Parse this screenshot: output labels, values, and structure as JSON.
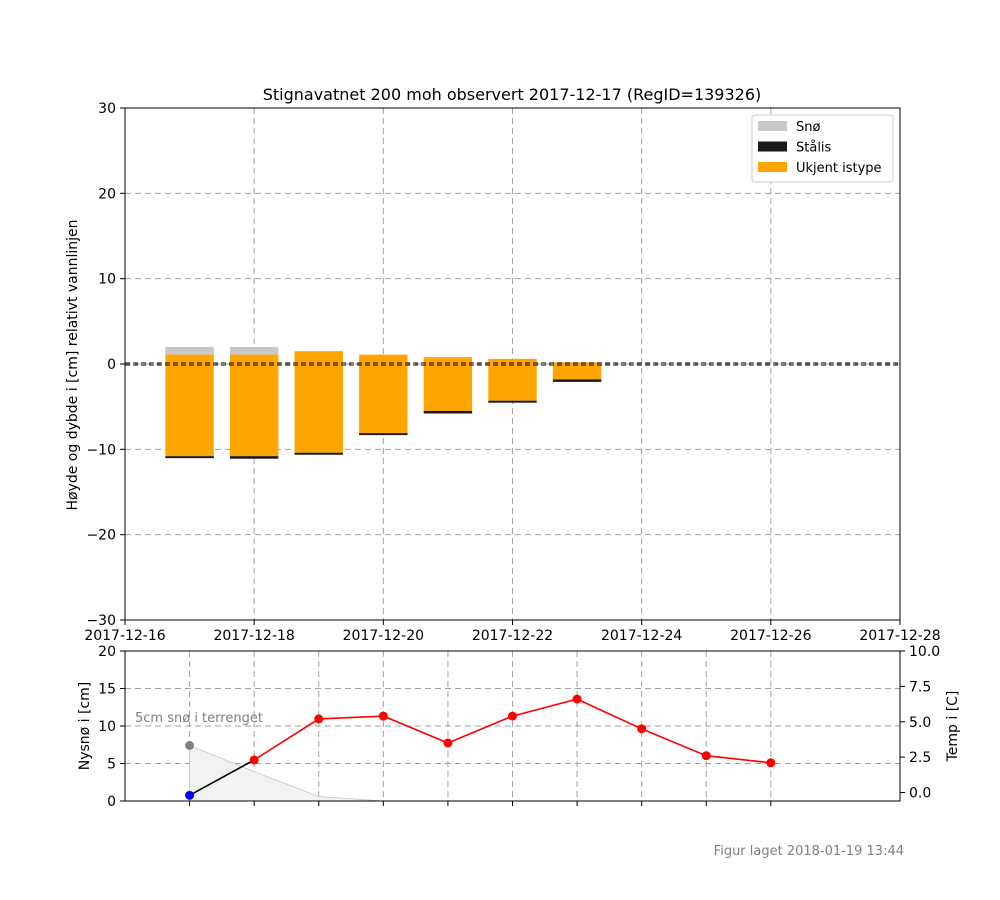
{
  "chart_data": [
    {
      "type": "bar",
      "title": "Stignavatnet 200 moh observert 2017-12-17 (RegID=139326)",
      "ylabel": "Høyde og dybde i [cm] relativt vannlinjen",
      "xlim": [
        "2017-12-16",
        "2017-12-28"
      ],
      "ylim": [
        -30,
        30
      ],
      "x_ticks": [
        "2017-12-16",
        "2017-12-18",
        "2017-12-20",
        "2017-12-22",
        "2017-12-24",
        "2017-12-26",
        "2017-12-28"
      ],
      "y_ticks": [
        30,
        20,
        10,
        0,
        -10,
        -20,
        -30
      ],
      "y_tick_labels": [
        "30",
        "20",
        "10",
        "0",
        "−10",
        "−20",
        "−30"
      ],
      "grid": true,
      "legend_position": "top-right",
      "legend": [
        {
          "label": "Snø",
          "color": "#c8c8c8"
        },
        {
          "label": "Stålis",
          "color": "#1a1a1a"
        },
        {
          "label": "Ukjent istype",
          "color": "#ffa500"
        }
      ],
      "bars": [
        {
          "date": "2017-12-17",
          "sno_top": 2.0,
          "sno_bottom": 1.1,
          "ukjent_top": 1.1,
          "ukjent_bottom": -10.8,
          "stalis_bottom": -10.8
        },
        {
          "date": "2017-12-18",
          "sno_top": 2.0,
          "sno_bottom": 1.1,
          "ukjent_top": 1.1,
          "ukjent_bottom": -10.8,
          "stalis_bottom": -11.1
        },
        {
          "date": "2017-12-19",
          "ukjent_top": 1.5,
          "ukjent_bottom": -10.4,
          "stalis_bottom": -10.6
        },
        {
          "date": "2017-12-20",
          "ukjent_top": 1.1,
          "ukjent_bottom": -8.1,
          "stalis_bottom": -8.3
        },
        {
          "date": "2017-12-21",
          "ukjent_top": 0.8,
          "ukjent_bottom": -5.5,
          "stalis_bottom": -5.8
        },
        {
          "date": "2017-12-22",
          "ukjent_top": 0.6,
          "ukjent_bottom": -4.3,
          "stalis_bottom": -4.5
        },
        {
          "date": "2017-12-23",
          "ukjent_top": 0.2,
          "ukjent_bottom": -1.8,
          "stalis_bottom": -2.1
        }
      ]
    },
    {
      "type": "line",
      "ylabel_left": "Nysnø i [cm]",
      "ylabel_right": "Temp i [C]",
      "ylim_left": [
        0,
        20
      ],
      "ylim_right": [
        -0.6,
        10.0
      ],
      "y_ticks_left": [
        "0",
        "5",
        "10",
        "15",
        "20"
      ],
      "y_ticks_right": [
        "0.0",
        "2.5",
        "5.0",
        "7.5",
        "10.0"
      ],
      "y_ticks_right_values": [
        0.0,
        2.5,
        5.0,
        7.5,
        10.0
      ],
      "annotation": "5cm snø i terrenget",
      "snow_area": [
        {
          "date": "2017-12-17",
          "value": 7.4
        },
        {
          "date": "2017-12-18",
          "value": 3.9
        },
        {
          "date": "2017-12-19",
          "value": 0.6
        },
        {
          "date": "2017-12-20",
          "value": 0.0
        }
      ],
      "snow_marker": {
        "date": "2017-12-17",
        "value": 7.4,
        "color": "#808080"
      },
      "temperature": [
        {
          "date": "2017-12-17",
          "value": -0.2
        },
        {
          "date": "2017-12-18",
          "value": 2.3
        },
        {
          "date": "2017-12-19",
          "value": 5.2
        },
        {
          "date": "2017-12-20",
          "value": 5.4
        },
        {
          "date": "2017-12-21",
          "value": 3.5
        },
        {
          "date": "2017-12-22",
          "value": 5.4
        },
        {
          "date": "2017-12-23",
          "value": 6.6
        },
        {
          "date": "2017-12-24",
          "value": 4.5
        },
        {
          "date": "2017-12-25",
          "value": 2.6
        },
        {
          "date": "2017-12-26",
          "value": 2.1
        }
      ],
      "colors": {
        "temp_line": "#ff0000",
        "temp_first_segment": "#000000",
        "temp_first_marker": "#0000ff",
        "grid": "#a0a0a0"
      }
    }
  ],
  "footnote": "Figur laget 2018-01-19 13:44"
}
